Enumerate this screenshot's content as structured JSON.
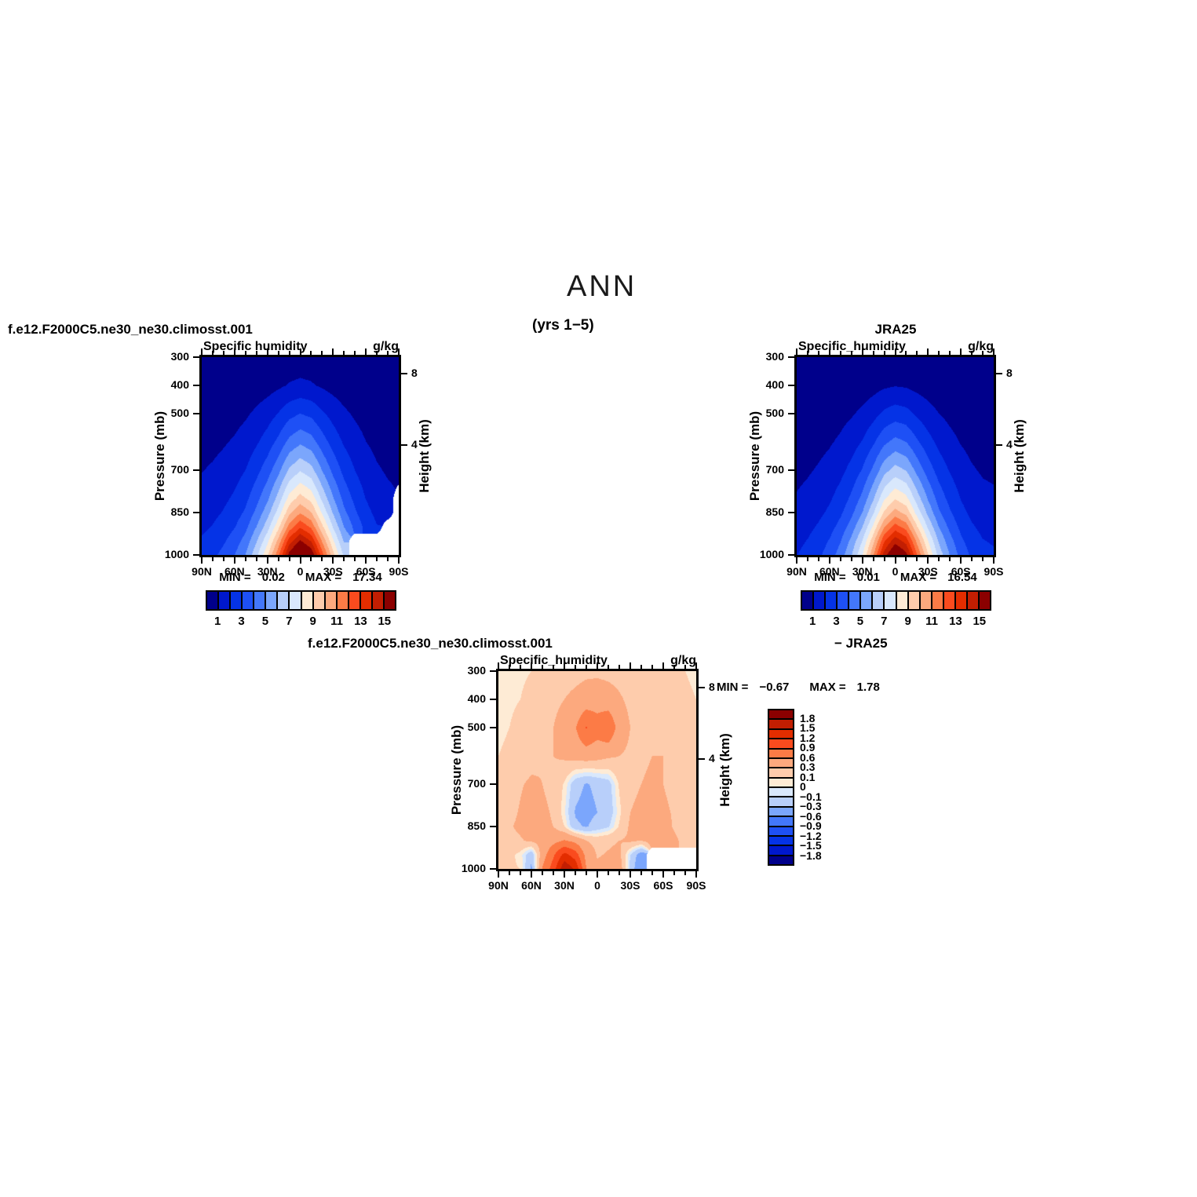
{
  "page": {
    "title": "ANN",
    "subtitle": "(yrs 1−5)"
  },
  "palette": [
    "#00008B",
    "#0018CD",
    "#0533E6",
    "#1E50F5",
    "#4377FB",
    "#7BA6FC",
    "#B8CFFA",
    "#D9E8FC",
    "#FEEBD5",
    "#FECCAC",
    "#FCA97E",
    "#FC7B46",
    "#FA4B1E",
    "#E32D00",
    "#C21E02",
    "#8B0000"
  ],
  "panels": [
    {
      "id": "model",
      "case_label": "f.e12.F2000C5.ne30_ne30.climosst.001",
      "field_title": "Specific humidity",
      "units": "g/kg",
      "stats": {
        "min_label": "MIN =",
        "min": "0.02",
        "max_label": "MAX =",
        "max": "17.34"
      },
      "left_axis": {
        "title": "Pressure (mb)",
        "ticks": [
          {
            "v": 300,
            "label": "300"
          },
          {
            "v": 400,
            "label": "400"
          },
          {
            "v": 500,
            "label": "500"
          },
          {
            "v": 700,
            "label": "700"
          },
          {
            "v": 850,
            "label": "850"
          },
          {
            "v": 1000,
            "label": "1000"
          }
        ]
      },
      "right_axis": {
        "title": "Height (km)",
        "ticks": [
          {
            "v": 358,
            "label": "8"
          },
          {
            "v": 611,
            "label": "4"
          }
        ]
      },
      "x_axis": {
        "major": [
          {
            "v": 90,
            "label": "90N"
          },
          {
            "v": 60,
            "label": "60N"
          },
          {
            "v": 30,
            "label": "30N"
          },
          {
            "v": 0,
            "label": "0"
          },
          {
            "v": -30,
            "label": "30S"
          },
          {
            "v": -60,
            "label": "60S"
          },
          {
            "v": -90,
            "label": "90S"
          }
        ],
        "minor": [
          80,
          70,
          50,
          40,
          20,
          10,
          -10,
          -20,
          -40,
          -50,
          -70,
          -80
        ]
      },
      "colorbar": {
        "orientation": "horizontal",
        "labels": [
          "1",
          "3",
          "5",
          "7",
          "9",
          "11",
          "13",
          "15"
        ]
      },
      "chart_index": 0
    },
    {
      "id": "jra",
      "case_label": "JRA25",
      "field_title": "Specific_humidity",
      "units": "g/kg",
      "stats": {
        "min_label": "MIN =",
        "min": "0.01",
        "max_label": "MAX =",
        "max": "16.54"
      },
      "left_axis": {
        "title": "Pressure (mb)",
        "ticks": [
          {
            "v": 300,
            "label": "300"
          },
          {
            "v": 400,
            "label": "400"
          },
          {
            "v": 500,
            "label": "500"
          },
          {
            "v": 700,
            "label": "700"
          },
          {
            "v": 850,
            "label": "850"
          },
          {
            "v": 1000,
            "label": "1000"
          }
        ]
      },
      "right_axis": {
        "title": "Height (km)",
        "ticks": [
          {
            "v": 358,
            "label": "8"
          },
          {
            "v": 611,
            "label": "4"
          }
        ]
      },
      "x_axis": {
        "major": [
          {
            "v": 90,
            "label": "90N"
          },
          {
            "v": 60,
            "label": "60N"
          },
          {
            "v": 30,
            "label": "30N"
          },
          {
            "v": 0,
            "label": "0"
          },
          {
            "v": -30,
            "label": "30S"
          },
          {
            "v": -60,
            "label": "60S"
          },
          {
            "v": -90,
            "label": "90S"
          }
        ],
        "minor": [
          80,
          70,
          50,
          40,
          20,
          10,
          -10,
          -20,
          -40,
          -50,
          -70,
          -80
        ]
      },
      "colorbar": {
        "orientation": "horizontal",
        "labels": [
          "1",
          "3",
          "5",
          "7",
          "9",
          "11",
          "13",
          "15"
        ]
      },
      "chart_index": 1
    },
    {
      "id": "diff",
      "case_label": "f.e12.F2000C5.ne30_ne30.climosst.001",
      "case_label2": "− JRA25",
      "field_title": "Specific_humidity",
      "units": "g/kg",
      "stats": {
        "min_label": "MIN =",
        "min": "−0.67",
        "max_label": "MAX =",
        "max": "1.78"
      },
      "left_axis": {
        "title": "Pressure (mb)",
        "ticks": [
          {
            "v": 300,
            "label": "300"
          },
          {
            "v": 400,
            "label": "400"
          },
          {
            "v": 500,
            "label": "500"
          },
          {
            "v": 700,
            "label": "700"
          },
          {
            "v": 850,
            "label": "850"
          },
          {
            "v": 1000,
            "label": "1000"
          }
        ]
      },
      "right_axis": {
        "title": "Height (km)",
        "ticks": [
          {
            "v": 358,
            "label": "8"
          },
          {
            "v": 611,
            "label": "4"
          }
        ]
      },
      "x_axis": {
        "major": [
          {
            "v": 90,
            "label": "90N"
          },
          {
            "v": 60,
            "label": "60N"
          },
          {
            "v": 30,
            "label": "30N"
          },
          {
            "v": 0,
            "label": "0"
          },
          {
            "v": -30,
            "label": "30S"
          },
          {
            "v": -60,
            "label": "60S"
          },
          {
            "v": -90,
            "label": "90S"
          }
        ],
        "minor": [
          80,
          70,
          50,
          40,
          20,
          10,
          -10,
          -20,
          -40,
          -50,
          -70,
          -80
        ]
      },
      "colorbar": {
        "orientation": "vertical",
        "labels": [
          "1.8",
          "1.5",
          "1.2",
          "0.9",
          "0.6",
          "0.3",
          "0.1",
          "0",
          "−0.1",
          "−0.3",
          "−0.6",
          "−0.9",
          "−1.2",
          "−1.5",
          "−1.8"
        ]
      },
      "chart_index": 2
    }
  ],
  "chart_data": [
    {
      "type": "heatmap",
      "subtype": "filled_contour_latitude_pressure",
      "title": "Specific humidity",
      "units": "g/kg",
      "xlabel": "latitude",
      "ylabel": "Pressure (mb)",
      "min": 0.02,
      "max": 17.34,
      "levels": [
        1,
        2,
        3,
        4,
        5,
        6,
        7,
        8,
        9,
        10,
        11,
        12,
        13,
        14,
        15
      ],
      "lats": [
        90,
        80,
        70,
        60,
        50,
        40,
        30,
        20,
        10,
        0,
        -10,
        -20,
        -30,
        -40,
        -50,
        -60,
        -70,
        -80,
        -90
      ],
      "pressures": [
        300,
        400,
        500,
        600,
        700,
        800,
        850,
        900,
        950,
        1000
      ],
      "grid": [
        [
          0.06,
          0.07,
          0.09,
          0.1,
          0.13,
          0.18,
          0.23,
          0.31,
          0.4,
          0.45,
          0.41,
          0.32,
          0.24,
          0.18,
          0.13,
          0.09,
          0.07,
          0.06,
          0.05
        ],
        [
          0.17,
          0.19,
          0.23,
          0.28,
          0.35,
          0.47,
          0.61,
          0.82,
          1.07,
          1.2,
          1.1,
          0.86,
          0.65,
          0.47,
          0.35,
          0.25,
          0.19,
          0.16,
          0.14
        ],
        [
          0.42,
          0.48,
          0.57,
          0.69,
          0.87,
          1.17,
          1.53,
          2.04,
          2.67,
          3.0,
          2.76,
          2.16,
          1.62,
          1.17,
          0.87,
          0.63,
          0.48,
          0.39,
          0.36
        ],
        [
          0.67,
          0.77,
          0.91,
          1.1,
          1.39,
          1.87,
          2.45,
          3.26,
          4.27,
          4.8,
          4.42,
          3.46,
          2.59,
          1.87,
          1.39,
          1.01,
          0.77,
          0.62,
          0.58
        ],
        [
          0.97,
          1.1,
          1.31,
          1.59,
          2.0,
          2.69,
          3.52,
          4.69,
          6.14,
          6.9,
          6.35,
          4.97,
          3.73,
          2.69,
          2.0,
          1.45,
          1.1,
          0.9,
          0.83
        ],
        [
          1.32,
          1.5,
          1.79,
          2.16,
          2.73,
          3.67,
          4.79,
          6.39,
          8.37,
          9.4,
          8.65,
          6.77,
          5.08,
          3.67,
          2.73,
          1.97,
          1.5,
          1.22,
          null
        ],
        [
          1.53,
          1.74,
          2.07,
          2.51,
          3.16,
          4.25,
          5.56,
          7.41,
          9.7,
          10.9,
          10.03,
          7.85,
          5.89,
          4.25,
          3.16,
          2.29,
          1.74,
          1.42,
          null
        ],
        [
          1.79,
          2.05,
          2.43,
          2.94,
          3.71,
          4.99,
          6.53,
          8.7,
          11.39,
          12.8,
          11.78,
          9.22,
          6.91,
          4.99,
          3.71,
          2.69,
          2.05,
          null,
          null
        ],
        [
          2.11,
          2.42,
          2.87,
          3.47,
          4.38,
          5.89,
          7.7,
          10.27,
          13.44,
          15.1,
          13.89,
          10.87,
          8.15,
          5.89,
          null,
          null,
          null,
          null,
          null
        ],
        [
          2.42,
          2.77,
          3.29,
          3.98,
          5.02,
          6.75,
          8.82,
          11.76,
          15.4,
          17.3,
          15.92,
          12.46,
          9.34,
          6.75,
          null,
          null,
          null,
          null,
          null
        ]
      ]
    },
    {
      "type": "heatmap",
      "subtype": "filled_contour_latitude_pressure",
      "title": "Specific_humidity",
      "units": "g/kg",
      "xlabel": "latitude",
      "ylabel": "Pressure (mb)",
      "min": 0.01,
      "max": 16.54,
      "levels": [
        1,
        2,
        3,
        4,
        5,
        6,
        7,
        8,
        9,
        10,
        11,
        12,
        13,
        14,
        15
      ],
      "lats": [
        90,
        80,
        70,
        60,
        50,
        40,
        30,
        20,
        10,
        0,
        -10,
        -20,
        -30,
        -40,
        -50,
        -60,
        -70,
        -80,
        -90
      ],
      "pressures": [
        300,
        400,
        500,
        600,
        700,
        800,
        850,
        900,
        950,
        1000
      ],
      "grid": [
        [
          0.04,
          0.05,
          0.06,
          0.07,
          0.09,
          0.13,
          0.17,
          0.23,
          0.31,
          0.35,
          0.33,
          0.26,
          0.19,
          0.14,
          0.11,
          0.08,
          0.06,
          0.05,
          0.05
        ],
        [
          0.11,
          0.13,
          0.16,
          0.2,
          0.26,
          0.34,
          0.46,
          0.63,
          0.84,
          0.95,
          0.88,
          0.69,
          0.52,
          0.38,
          0.29,
          0.21,
          0.16,
          0.13,
          0.12
        ],
        [
          0.3,
          0.35,
          0.43,
          0.53,
          0.68,
          0.9,
          1.2,
          1.65,
          2.2,
          2.5,
          2.33,
          1.83,
          1.38,
          1.0,
          0.75,
          0.55,
          0.43,
          0.35,
          0.33
        ],
        [
          0.52,
          0.6,
          0.73,
          0.9,
          1.16,
          1.55,
          2.06,
          2.84,
          3.78,
          4.3,
          4.0,
          3.14,
          2.37,
          1.72,
          1.29,
          0.95,
          0.73,
          0.6,
          0.56
        ],
        [
          0.77,
          0.9,
          1.09,
          1.34,
          1.73,
          2.3,
          3.07,
          4.22,
          5.63,
          6.4,
          5.95,
          4.67,
          3.52,
          2.56,
          1.92,
          1.41,
          1.09,
          0.9,
          0.83
        ],
        [
          1.07,
          1.25,
          1.51,
          1.87,
          2.4,
          3.2,
          4.27,
          5.87,
          7.83,
          8.9,
          8.28,
          6.5,
          4.9,
          3.56,
          2.67,
          1.96,
          1.51,
          1.25,
          1.16
        ],
        [
          1.25,
          1.46,
          1.77,
          2.18,
          2.81,
          3.74,
          4.99,
          6.86,
          9.15,
          10.4,
          9.67,
          7.59,
          5.72,
          4.16,
          3.12,
          2.29,
          1.77,
          1.46,
          1.35
        ],
        [
          1.49,
          1.74,
          2.11,
          2.6,
          3.35,
          4.46,
          5.95,
          8.18,
          10.91,
          12.4,
          11.53,
          9.05,
          6.82,
          4.96,
          3.72,
          2.73,
          2.11,
          1.74,
          1.61
        ],
        [
          1.75,
          2.04,
          2.48,
          3.07,
          3.94,
          5.26,
          7.01,
          9.64,
          12.85,
          14.6,
          13.58,
          10.66,
          8.03,
          5.84,
          4.38,
          3.21,
          2.48,
          2.04,
          1.9
        ],
        [
          1.98,
          2.31,
          2.81,
          3.47,
          4.46,
          5.94,
          7.92,
          10.89,
          14.52,
          16.5,
          15.35,
          12.05,
          9.08,
          6.6,
          4.95,
          3.63,
          2.81,
          2.31,
          2.15
        ]
      ]
    },
    {
      "type": "heatmap",
      "subtype": "filled_contour_latitude_pressure_difference",
      "title": "Specific_humidity (model − JRA25)",
      "units": "g/kg",
      "xlabel": "latitude",
      "ylabel": "Pressure (mb)",
      "min": -0.67,
      "max": 1.78,
      "levels": [
        -1.8,
        -1.5,
        -1.2,
        -0.9,
        -0.6,
        -0.3,
        -0.1,
        0,
        0.1,
        0.3,
        0.6,
        0.9,
        1.2,
        1.5,
        1.8
      ],
      "lats": [
        90,
        80,
        70,
        60,
        50,
        40,
        30,
        20,
        10,
        0,
        -10,
        -20,
        -30,
        -40,
        -50,
        -60,
        -70,
        -80,
        -90
      ],
      "pressures": [
        300,
        400,
        500,
        600,
        700,
        800,
        850,
        900,
        950,
        1000
      ],
      "grid": [
        [
          0.05,
          0.06,
          0.08,
          0.1,
          0.14,
          0.18,
          0.2,
          0.22,
          0.25,
          0.25,
          0.24,
          0.22,
          0.18,
          0.15,
          0.15,
          0.14,
          0.12,
          0.1,
          0.08
        ],
        [
          0.06,
          0.08,
          0.1,
          0.14,
          0.18,
          0.24,
          0.3,
          0.36,
          0.42,
          0.45,
          0.4,
          0.33,
          0.25,
          0.2,
          0.2,
          0.18,
          0.15,
          0.12,
          0.1
        ],
        [
          0.08,
          0.1,
          0.14,
          0.18,
          0.24,
          0.3,
          0.42,
          0.58,
          0.92,
          0.75,
          0.9,
          0.45,
          0.3,
          0.26,
          0.3,
          0.26,
          0.2,
          0.15,
          0.22
        ],
        [
          0.1,
          0.12,
          0.16,
          0.22,
          0.28,
          0.3,
          0.34,
          0.4,
          0.44,
          0.4,
          0.34,
          0.3,
          0.26,
          0.26,
          0.3,
          0.3,
          0.24,
          0.18,
          0.25
        ],
        [
          0.14,
          0.18,
          0.28,
          0.34,
          0.3,
          0.24,
          0.08,
          -0.22,
          -0.32,
          -0.25,
          -0.18,
          0.12,
          0.26,
          0.3,
          0.34,
          0.3,
          0.24,
          0.18,
          0.15
        ],
        [
          0.18,
          0.24,
          0.32,
          0.38,
          0.34,
          0.28,
          0.02,
          -0.32,
          -0.38,
          -0.3,
          -0.22,
          0.06,
          0.3,
          0.34,
          0.38,
          0.34,
          0.28,
          0.2,
          0.15
        ],
        [
          0.2,
          0.28,
          0.34,
          0.38,
          0.34,
          0.3,
          0.1,
          -0.26,
          -0.32,
          -0.2,
          -0.12,
          0.12,
          0.34,
          0.4,
          0.44,
          0.38,
          0.28,
          0.2,
          0.15
        ],
        [
          0.16,
          0.24,
          0.28,
          0.34,
          0.4,
          0.5,
          0.62,
          0.52,
          0.3,
          0.22,
          0.26,
          0.3,
          0.34,
          0.3,
          0.4,
          0.44,
          0.34,
          0.24,
          0.18
        ],
        [
          0.12,
          0.15,
          0.05,
          -0.25,
          0.45,
          0.85,
          1.3,
          1.05,
          0.5,
          0.28,
          0.32,
          0.36,
          -0.1,
          -0.45,
          null,
          null,
          null,
          null,
          null
        ],
        [
          0.1,
          0.12,
          0.1,
          -0.35,
          0.62,
          1.05,
          1.75,
          1.45,
          0.6,
          0.34,
          0.42,
          0.46,
          -0.15,
          -0.55,
          null,
          null,
          null,
          null,
          null
        ]
      ]
    }
  ]
}
